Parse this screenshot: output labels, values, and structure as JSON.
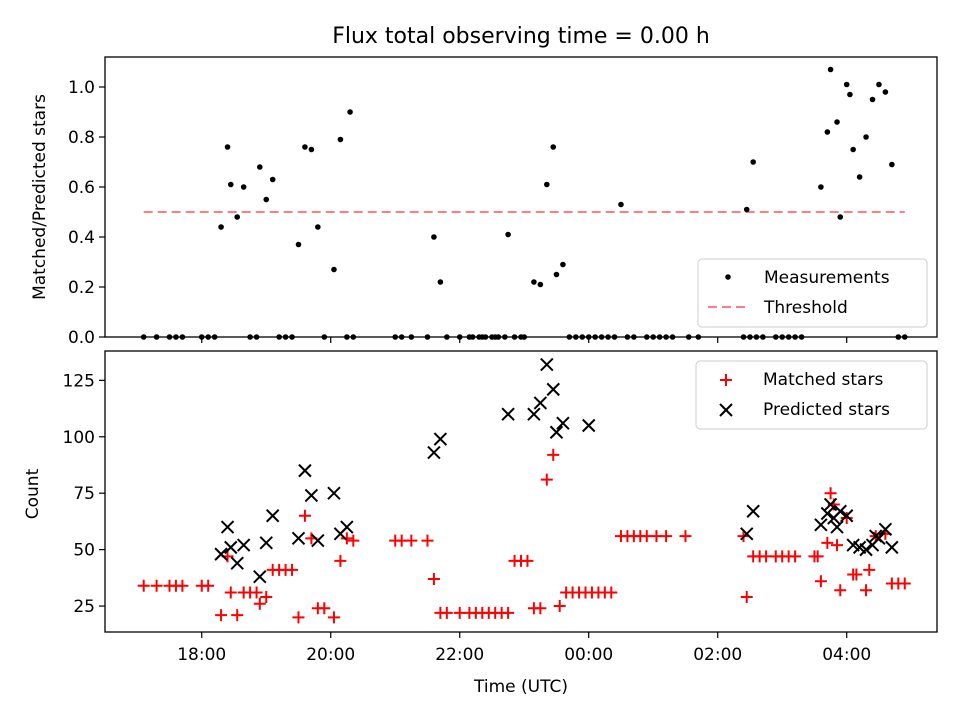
{
  "title": "Flux total observing time = 0.00 h",
  "chart_data": [
    {
      "type": "scatter",
      "ylabel": "Matched/Predicted stars",
      "xlim": [
        16.5,
        29.4
      ],
      "ylim": [
        0,
        1.12
      ],
      "yticks": [
        0.0,
        0.2,
        0.4,
        0.6,
        0.8,
        1.0
      ],
      "ytick_labels": [
        "0.0",
        "0.2",
        "0.4",
        "0.6",
        "0.8",
        "1.0"
      ],
      "legend": {
        "position": "lower-right",
        "entries": [
          "Measurements",
          "Threshold"
        ]
      },
      "threshold": {
        "value": 0.5,
        "x": [
          17.1,
          28.9
        ],
        "color": "#ff7f7f"
      },
      "series": [
        {
          "name": "Measurements",
          "color": "#000000",
          "points": [
            [
              17.1,
              0
            ],
            [
              17.3,
              0
            ],
            [
              17.5,
              0
            ],
            [
              17.6,
              0
            ],
            [
              17.7,
              0
            ],
            [
              18.0,
              0
            ],
            [
              18.1,
              0
            ],
            [
              18.2,
              0
            ],
            [
              18.3,
              0.44
            ],
            [
              18.4,
              0.76
            ],
            [
              18.45,
              0.61
            ],
            [
              18.55,
              0.48
            ],
            [
              18.65,
              0.6
            ],
            [
              18.75,
              0
            ],
            [
              18.85,
              0
            ],
            [
              18.9,
              0.68
            ],
            [
              19.0,
              0.55
            ],
            [
              19.1,
              0.63
            ],
            [
              19.2,
              0
            ],
            [
              19.3,
              0
            ],
            [
              19.4,
              0
            ],
            [
              19.5,
              0.37
            ],
            [
              19.6,
              0.76
            ],
            [
              19.7,
              0.75
            ],
            [
              19.8,
              0.44
            ],
            [
              19.9,
              0
            ],
            [
              20.05,
              0.27
            ],
            [
              20.15,
              0.79
            ],
            [
              20.25,
              0
            ],
            [
              20.3,
              0.9
            ],
            [
              20.35,
              0
            ],
            [
              21.0,
              0
            ],
            [
              21.1,
              0
            ],
            [
              21.25,
              0
            ],
            [
              21.5,
              0
            ],
            [
              21.6,
              0.4
            ],
            [
              21.7,
              0.22
            ],
            [
              21.8,
              0
            ],
            [
              22.0,
              0
            ],
            [
              22.15,
              0
            ],
            [
              22.2,
              0
            ],
            [
              22.3,
              0
            ],
            [
              22.35,
              0
            ],
            [
              22.4,
              0
            ],
            [
              22.5,
              0
            ],
            [
              22.55,
              0
            ],
            [
              22.6,
              0
            ],
            [
              22.7,
              0
            ],
            [
              22.75,
              0.41
            ],
            [
              22.85,
              0
            ],
            [
              22.95,
              0
            ],
            [
              23.0,
              0
            ],
            [
              23.15,
              0.22
            ],
            [
              23.25,
              0.21
            ],
            [
              23.35,
              0.61
            ],
            [
              23.45,
              0.76
            ],
            [
              23.5,
              0.25
            ],
            [
              23.6,
              0.29
            ],
            [
              23.7,
              0
            ],
            [
              23.8,
              0
            ],
            [
              23.9,
              0
            ],
            [
              24.0,
              0
            ],
            [
              24.1,
              0
            ],
            [
              24.2,
              0
            ],
            [
              24.3,
              0
            ],
            [
              24.4,
              0
            ],
            [
              24.5,
              0.53
            ],
            [
              24.6,
              0
            ],
            [
              24.7,
              0
            ],
            [
              24.9,
              0
            ],
            [
              25.0,
              0
            ],
            [
              25.1,
              0
            ],
            [
              25.2,
              0
            ],
            [
              25.3,
              0
            ],
            [
              25.55,
              0
            ],
            [
              25.7,
              0
            ],
            [
              26.4,
              0
            ],
            [
              26.45,
              0.51
            ],
            [
              26.5,
              0
            ],
            [
              26.55,
              0.7
            ],
            [
              26.6,
              0
            ],
            [
              26.7,
              0
            ],
            [
              26.9,
              0
            ],
            [
              27.0,
              0
            ],
            [
              27.1,
              0
            ],
            [
              27.2,
              0
            ],
            [
              27.3,
              0
            ],
            [
              27.6,
              0.6
            ],
            [
              27.7,
              0.82
            ],
            [
              27.75,
              1.07
            ],
            [
              27.85,
              0.86
            ],
            [
              27.9,
              0.48
            ],
            [
              28.0,
              1.01
            ],
            [
              28.05,
              0.97
            ],
            [
              28.1,
              0.75
            ],
            [
              28.2,
              0.64
            ],
            [
              28.3,
              0.8
            ],
            [
              28.4,
              0.95
            ],
            [
              28.5,
              1.01
            ],
            [
              28.6,
              0.98
            ],
            [
              28.7,
              0.69
            ],
            [
              28.8,
              0
            ],
            [
              28.9,
              0
            ]
          ]
        }
      ]
    },
    {
      "type": "scatter",
      "ylabel": "Count",
      "xlabel": "Time (UTC)",
      "xlim": [
        16.5,
        29.4
      ],
      "ylim": [
        13.5,
        138
      ],
      "yticks": [
        25,
        50,
        75,
        100,
        125
      ],
      "ytick_labels": [
        "25",
        "50",
        "75",
        "100",
        "125"
      ],
      "xticks": [
        18,
        20,
        22,
        24,
        26,
        28
      ],
      "xtick_labels": [
        "18:00",
        "20:00",
        "22:00",
        "00:00",
        "02:00",
        "04:00"
      ],
      "legend": {
        "position": "top-right",
        "entries": [
          "Matched stars",
          "Predicted stars"
        ]
      },
      "series": [
        {
          "name": "Matched stars",
          "color": "#ff0000",
          "marker": "+",
          "points": [
            [
              17.1,
              34
            ],
            [
              17.3,
              34
            ],
            [
              17.5,
              34
            ],
            [
              17.6,
              34
            ],
            [
              17.7,
              34
            ],
            [
              18.0,
              34
            ],
            [
              18.1,
              34
            ],
            [
              18.3,
              21
            ],
            [
              18.4,
              47
            ],
            [
              18.45,
              31
            ],
            [
              18.55,
              21
            ],
            [
              18.65,
              31
            ],
            [
              18.75,
              31
            ],
            [
              18.85,
              31
            ],
            [
              18.9,
              26
            ],
            [
              19.0,
              29
            ],
            [
              19.1,
              41
            ],
            [
              19.2,
              41
            ],
            [
              19.3,
              41
            ],
            [
              19.4,
              41
            ],
            [
              19.5,
              20
            ],
            [
              19.6,
              65
            ],
            [
              19.7,
              55
            ],
            [
              19.8,
              24
            ],
            [
              19.9,
              24
            ],
            [
              20.05,
              20
            ],
            [
              20.15,
              45
            ],
            [
              20.25,
              55
            ],
            [
              20.35,
              54
            ],
            [
              21.0,
              54
            ],
            [
              21.1,
              54
            ],
            [
              21.25,
              54
            ],
            [
              21.5,
              54
            ],
            [
              21.6,
              37
            ],
            [
              21.7,
              22
            ],
            [
              21.8,
              22
            ],
            [
              22.0,
              22
            ],
            [
              22.15,
              22
            ],
            [
              22.25,
              22
            ],
            [
              22.35,
              22
            ],
            [
              22.45,
              22
            ],
            [
              22.55,
              22
            ],
            [
              22.65,
              22
            ],
            [
              22.75,
              22
            ],
            [
              22.85,
              45
            ],
            [
              22.95,
              45
            ],
            [
              23.05,
              45
            ],
            [
              23.15,
              24
            ],
            [
              23.25,
              24
            ],
            [
              23.35,
              81
            ],
            [
              23.45,
              92
            ],
            [
              23.55,
              25
            ],
            [
              23.65,
              31
            ],
            [
              23.75,
              31
            ],
            [
              23.85,
              31
            ],
            [
              23.95,
              31
            ],
            [
              24.05,
              31
            ],
            [
              24.15,
              31
            ],
            [
              24.25,
              31
            ],
            [
              24.35,
              31
            ],
            [
              24.5,
              56
            ],
            [
              24.6,
              56
            ],
            [
              24.7,
              56
            ],
            [
              24.8,
              56
            ],
            [
              24.9,
              56
            ],
            [
              25.05,
              56
            ],
            [
              25.2,
              56
            ],
            [
              25.5,
              56
            ],
            [
              26.4,
              56
            ],
            [
              26.45,
              29
            ],
            [
              26.55,
              47
            ],
            [
              26.65,
              47
            ],
            [
              26.75,
              47
            ],
            [
              26.9,
              47
            ],
            [
              27.0,
              47
            ],
            [
              27.1,
              47
            ],
            [
              27.2,
              47
            ],
            [
              27.5,
              47
            ],
            [
              27.55,
              47
            ],
            [
              27.6,
              36
            ],
            [
              27.7,
              53
            ],
            [
              27.75,
              75
            ],
            [
              27.8,
              70
            ],
            [
              27.85,
              52
            ],
            [
              27.9,
              32
            ],
            [
              28.0,
              64
            ],
            [
              28.1,
              39
            ],
            [
              28.15,
              39
            ],
            [
              28.3,
              32
            ],
            [
              28.35,
              41
            ],
            [
              28.45,
              56
            ],
            [
              28.6,
              57
            ],
            [
              28.7,
              35
            ],
            [
              28.8,
              35
            ],
            [
              28.9,
              35
            ]
          ]
        },
        {
          "name": "Predicted stars",
          "color": "#000000",
          "marker": "x",
          "points": [
            [
              18.3,
              48
            ],
            [
              18.4,
              60
            ],
            [
              18.45,
              51
            ],
            [
              18.55,
              44
            ],
            [
              18.65,
              52
            ],
            [
              18.9,
              38
            ],
            [
              19.0,
              53
            ],
            [
              19.1,
              65
            ],
            [
              19.5,
              55
            ],
            [
              19.6,
              85
            ],
            [
              19.7,
              74
            ],
            [
              19.8,
              54
            ],
            [
              20.05,
              75
            ],
            [
              20.15,
              57
            ],
            [
              20.25,
              60
            ],
            [
              21.6,
              93
            ],
            [
              21.7,
              99
            ],
            [
              22.75,
              110
            ],
            [
              23.15,
              110
            ],
            [
              23.25,
              115
            ],
            [
              23.35,
              132
            ],
            [
              23.45,
              121
            ],
            [
              23.5,
              102
            ],
            [
              23.6,
              106
            ],
            [
              24.0,
              105
            ],
            [
              26.45,
              57
            ],
            [
              26.55,
              67
            ],
            [
              27.6,
              61
            ],
            [
              27.7,
              66
            ],
            [
              27.75,
              70
            ],
            [
              27.8,
              64
            ],
            [
              27.85,
              60
            ],
            [
              27.9,
              67
            ],
            [
              28.0,
              65
            ],
            [
              28.1,
              52
            ],
            [
              28.2,
              51
            ],
            [
              28.3,
              50
            ],
            [
              28.4,
              52
            ],
            [
              28.45,
              56
            ],
            [
              28.5,
              55
            ],
            [
              28.6,
              59
            ],
            [
              28.7,
              51
            ]
          ]
        }
      ]
    }
  ]
}
